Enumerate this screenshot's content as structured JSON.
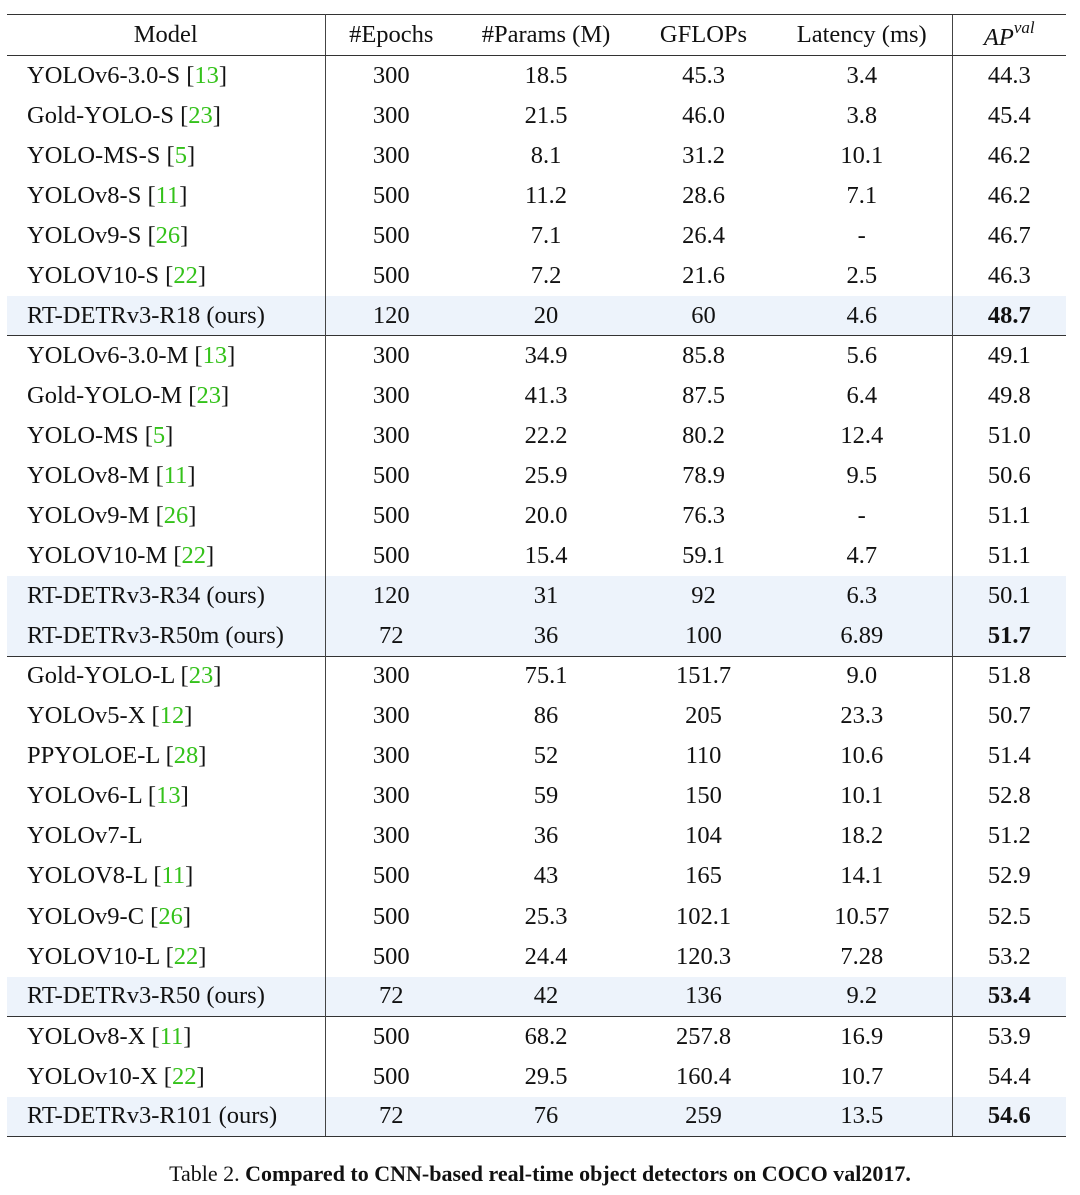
{
  "table": {
    "headers": {
      "model": "Model",
      "epochs": "#Epochs",
      "params": "#Params (M)",
      "gflops": "GFLOPs",
      "latency": "Latency (ms)",
      "ap_base": "AP",
      "ap_sup": "val"
    },
    "rows": [
      {
        "name": "YOLOv6-3.0-S",
        "ref": "13",
        "epochs": "300",
        "params": "18.5",
        "gflops": "45.3",
        "latency": "3.4",
        "ap": "44.3"
      },
      {
        "name": "Gold-YOLO-S",
        "ref": "23",
        "epochs": "300",
        "params": "21.5",
        "gflops": "46.0",
        "latency": "3.8",
        "ap": "45.4"
      },
      {
        "name": "YOLO-MS-S",
        "ref": "5",
        "epochs": "300",
        "params": "8.1",
        "gflops": "31.2",
        "latency": "10.1",
        "ap": "46.2"
      },
      {
        "name": "YOLOv8-S",
        "ref": "11",
        "epochs": "500",
        "params": "11.2",
        "gflops": "28.6",
        "latency": "7.1",
        "ap": "46.2"
      },
      {
        "name": "YOLOv9-S",
        "ref": "26",
        "epochs": "500",
        "params": "7.1",
        "gflops": "26.4",
        "latency": "-",
        "ap": "46.7"
      },
      {
        "name": "YOLOV10-S",
        "ref": "22",
        "epochs": "500",
        "params": "7.2",
        "gflops": "21.6",
        "latency": "2.5",
        "ap": "46.3"
      },
      {
        "name": "RT-DETRv3-R18 (ours)",
        "epochs": "120",
        "params": "20",
        "gflops": "60",
        "latency": "4.6",
        "ap": "48.7",
        "ours": true,
        "best": true
      },
      {
        "name": "YOLOv6-3.0-M",
        "ref": "13",
        "epochs": "300",
        "params": "34.9",
        "gflops": "85.8",
        "latency": "5.6",
        "ap": "49.1",
        "group_start": true
      },
      {
        "name": "Gold-YOLO-M",
        "ref": "23",
        "epochs": "300",
        "params": "41.3",
        "gflops": "87.5",
        "latency": "6.4",
        "ap": "49.8"
      },
      {
        "name": "YOLO-MS",
        "ref": "5",
        "epochs": "300",
        "params": "22.2",
        "gflops": "80.2",
        "latency": "12.4",
        "ap": "51.0"
      },
      {
        "name": "YOLOv8-M",
        "ref": "11",
        "epochs": "500",
        "params": "25.9",
        "gflops": "78.9",
        "latency": "9.5",
        "ap": "50.6"
      },
      {
        "name": "YOLOv9-M",
        "ref": "26",
        "epochs": "500",
        "params": "20.0",
        "gflops": "76.3",
        "latency": "-",
        "ap": "51.1"
      },
      {
        "name": "YOLOV10-M",
        "ref": "22",
        "epochs": "500",
        "params": "15.4",
        "gflops": "59.1",
        "latency": "4.7",
        "ap": "51.1"
      },
      {
        "name": "RT-DETRv3-R34 (ours)",
        "epochs": "120",
        "params": "31",
        "gflops": "92",
        "latency": "6.3",
        "ap": "50.1",
        "ours": true
      },
      {
        "name": "RT-DETRv3-R50m (ours)",
        "epochs": "72",
        "params": "36",
        "gflops": "100",
        "latency": "6.89",
        "ap": "51.7",
        "ours": true,
        "best": true
      },
      {
        "name": "Gold-YOLO-L",
        "ref": "23",
        "epochs": "300",
        "params": "75.1",
        "gflops": "151.7",
        "latency": "9.0",
        "ap": "51.8",
        "group_start": true
      },
      {
        "name": "YOLOv5-X",
        "ref": "12",
        "epochs": "300",
        "params": "86",
        "gflops": "205",
        "latency": "23.3",
        "ap": "50.7"
      },
      {
        "name": "PPYOLOE-L",
        "ref": "28",
        "epochs": "300",
        "params": "52",
        "gflops": "110",
        "latency": "10.6",
        "ap": "51.4"
      },
      {
        "name": "YOLOv6-L",
        "ref": "13",
        "epochs": "300",
        "params": "59",
        "gflops": "150",
        "latency": "10.1",
        "ap": "52.8"
      },
      {
        "name": "YOLOv7-L",
        "epochs": "300",
        "params": "36",
        "gflops": "104",
        "latency": "18.2",
        "ap": "51.2"
      },
      {
        "name": "YOLOV8-L",
        "ref": "11",
        "epochs": "500",
        "params": "43",
        "gflops": "165",
        "latency": "14.1",
        "ap": "52.9"
      },
      {
        "name": "YOLOv9-C",
        "ref": "26",
        "epochs": "500",
        "params": "25.3",
        "gflops": "102.1",
        "latency": "10.57",
        "ap": "52.5"
      },
      {
        "name": "YOLOV10-L",
        "ref": "22",
        "epochs": "500",
        "params": "24.4",
        "gflops": "120.3",
        "latency": "7.28",
        "ap": "53.2"
      },
      {
        "name": "RT-DETRv3-R50 (ours)",
        "epochs": "72",
        "params": "42",
        "gflops": "136",
        "latency": "9.2",
        "ap": "53.4",
        "ours": true,
        "best": true
      },
      {
        "name": "YOLOv8-X",
        "ref": "11",
        "epochs": "500",
        "params": "68.2",
        "gflops": "257.8",
        "latency": "16.9",
        "ap": "53.9",
        "group_start": true
      },
      {
        "name": "YOLOv10-X",
        "ref": "22",
        "epochs": "500",
        "params": "29.5",
        "gflops": "160.4",
        "latency": "10.7",
        "ap": "54.4"
      },
      {
        "name": "RT-DETRv3-R101 (ours)",
        "epochs": "72",
        "params": "76",
        "gflops": "259",
        "latency": "13.5",
        "ap": "54.6",
        "ours": true,
        "best": true
      }
    ]
  },
  "caption": {
    "label": "Table 2.",
    "text": "Compared to CNN-based real-time object detectors on COCO val2017."
  },
  "colors": {
    "citation": "#34c21a",
    "highlight_row": "#edf3fb",
    "rule": "#333333"
  }
}
